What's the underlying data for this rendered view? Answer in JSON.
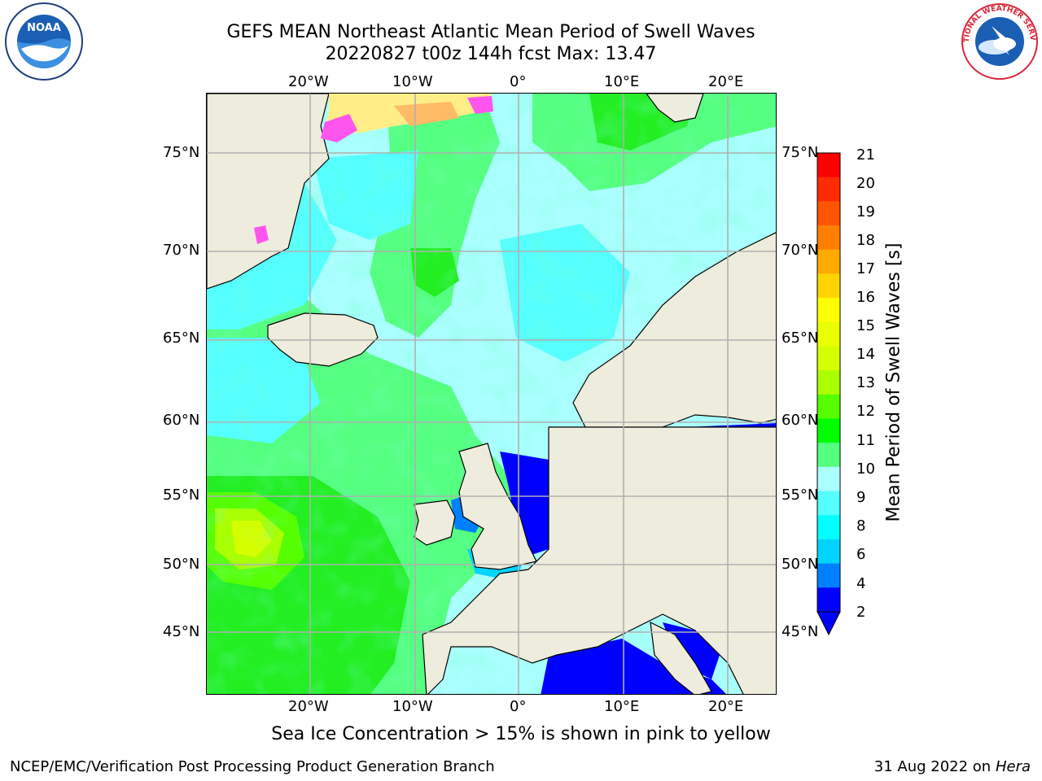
{
  "title": {
    "line1": "GEFS MEAN Northeast Atlantic Mean Period of Swell Waves",
    "line2": "20220827 t00z 144h fcst   Max: 13.47"
  },
  "axes": {
    "lon_labels": [
      "20°W",
      "10°W",
      "0°",
      "10°E",
      "20°E"
    ],
    "lat_labels": [
      "75°N",
      "70°N",
      "65°N",
      "60°N",
      "55°N",
      "50°N",
      "45°N"
    ]
  },
  "colorbar": {
    "label": "Mean Period of Swell Waves [s]",
    "ticks": [
      "21",
      "20",
      "19",
      "18",
      "17",
      "16",
      "15",
      "14",
      "13",
      "12",
      "11",
      "10",
      "9",
      "8",
      "6",
      "4",
      "2"
    ],
    "colors_top_to_bottom": [
      "#ff0000",
      "#ff2b00",
      "#ff5500",
      "#ff8000",
      "#ffaa00",
      "#ffd400",
      "#ffff00",
      "#eaff00",
      "#d4ff00",
      "#aaff00",
      "#55ff00",
      "#00ff00",
      "#55ff80",
      "#aaffff",
      "#55ffff",
      "#00ffff",
      "#00d4ff",
      "#0080ff",
      "#0000ff"
    ]
  },
  "note": "Sea Ice Concentration > 15% is shown in pink to yellow",
  "footer": {
    "left": "NCEP/EMC/Verification Post Processing Product Generation Branch",
    "right_date": "31 Aug 2022 on",
    "right_machine": "Hera"
  },
  "logos": {
    "noaa": {
      "text": "NOAA",
      "icon": "noaa-logo"
    },
    "nws": {
      "text": "NATIONAL WEATHER SERVICE",
      "icon": "nws-logo"
    }
  },
  "colors": {
    "land": "#eeecdc",
    "grid": "#b0b0b0",
    "sea_ice_pink": "#ff55ee",
    "sea_ice_yellow": "#ffee88"
  }
}
